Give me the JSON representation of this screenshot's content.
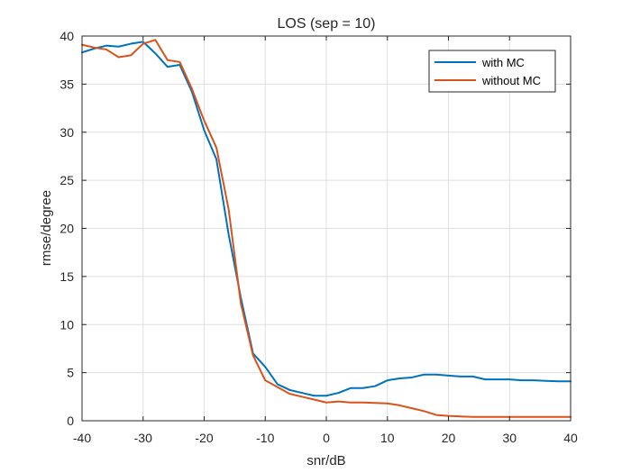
{
  "chart_data": {
    "type": "line",
    "title": "LOS (sep = 10)",
    "xlabel": "snr/dB",
    "ylabel": "rmse/degree",
    "xlim": [
      -40,
      40
    ],
    "ylim": [
      0,
      40
    ],
    "xticks": [
      -40,
      -30,
      -20,
      -10,
      0,
      10,
      20,
      30,
      40
    ],
    "yticks": [
      0,
      5,
      10,
      15,
      20,
      25,
      30,
      35,
      40
    ],
    "x_tick_labels": [
      "-40",
      "-30",
      "-20",
      "-10",
      "0",
      "10",
      "20",
      "30",
      "40"
    ],
    "y_tick_labels": [
      "0",
      "5",
      "10",
      "15",
      "20",
      "25",
      "30",
      "35",
      "40"
    ],
    "grid": true,
    "legend_position": "top-right",
    "x": [
      -40,
      -38,
      -36,
      -34,
      -32,
      -30,
      -28,
      -26,
      -24,
      -22,
      -20,
      -18,
      -16,
      -14,
      -12,
      -10,
      -8,
      -6,
      -4,
      -2,
      0,
      2,
      4,
      6,
      8,
      10,
      12,
      14,
      16,
      18,
      20,
      22,
      24,
      26,
      28,
      30,
      32,
      34,
      36,
      38,
      40
    ],
    "series": [
      {
        "name": "with MC",
        "color": "#0072BD",
        "values": [
          38.3,
          38.7,
          39.0,
          38.9,
          39.2,
          39.4,
          38.2,
          36.8,
          37.0,
          34.2,
          30.2,
          27.2,
          19.4,
          12.8,
          7.0,
          5.6,
          3.8,
          3.2,
          2.9,
          2.6,
          2.6,
          2.9,
          3.4,
          3.4,
          3.6,
          4.2,
          4.4,
          4.5,
          4.8,
          4.8,
          4.7,
          4.6,
          4.6,
          4.3,
          4.3,
          4.3,
          4.2,
          4.2,
          4.15,
          4.1,
          4.1
        ]
      },
      {
        "name": "without MC",
        "color": "#D95319",
        "values": [
          39.1,
          38.8,
          38.6,
          37.8,
          38.0,
          39.2,
          39.6,
          37.5,
          37.3,
          34.5,
          31.2,
          28.4,
          22.0,
          12.2,
          6.8,
          4.2,
          3.5,
          2.8,
          2.5,
          2.2,
          1.9,
          2.0,
          1.9,
          1.9,
          1.85,
          1.8,
          1.6,
          1.3,
          1.0,
          0.6,
          0.5,
          0.45,
          0.4,
          0.4,
          0.4,
          0.4,
          0.4,
          0.4,
          0.4,
          0.4,
          0.4
        ]
      }
    ]
  }
}
